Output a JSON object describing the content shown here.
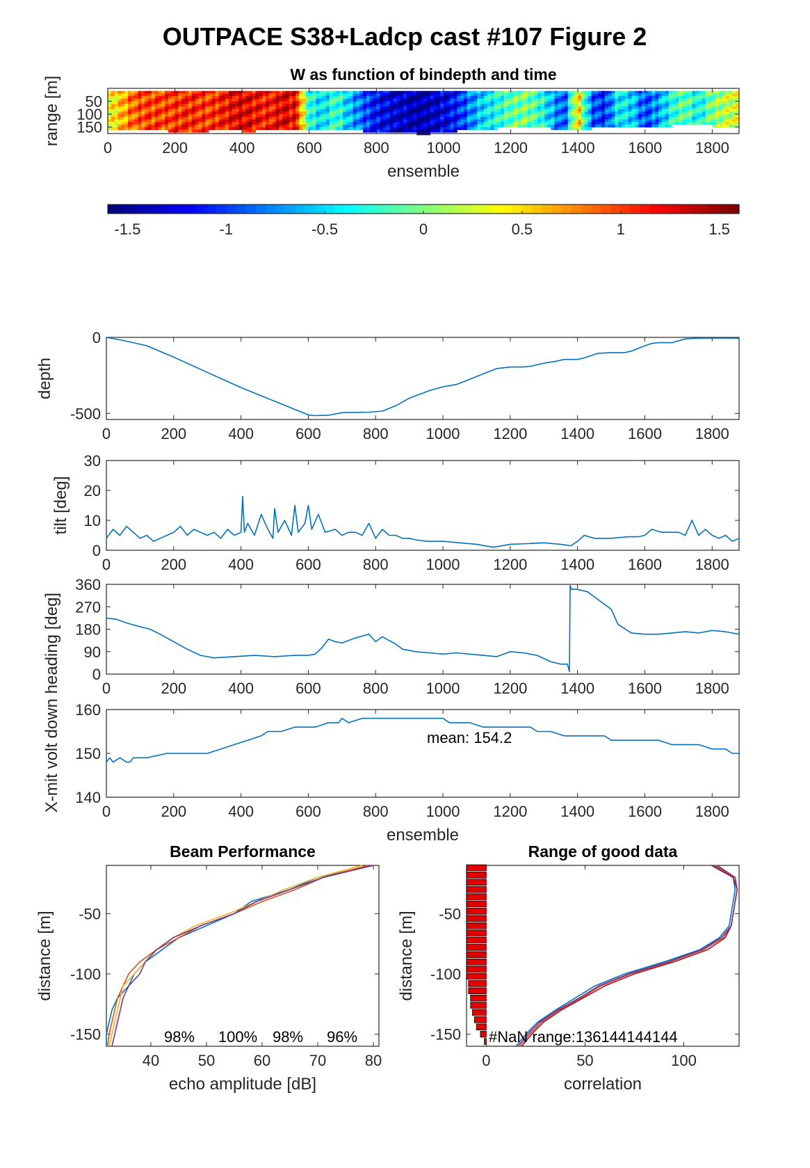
{
  "figure_title": "OUTPACE S38+Ladcp cast #107 Figure 2",
  "colors": {
    "line": "#0072BD",
    "bar_fill": "#e00000",
    "axis": "#262626",
    "beam_lines": [
      "#0072BD",
      "#D95319",
      "#EDB120",
      "#7E2F8E"
    ],
    "corr_lines": [
      "#0072BD",
      "#D95319",
      "#A2142F",
      "#7E2F8E"
    ]
  },
  "chart_data": [
    {
      "id": "w_section",
      "type": "heatmap",
      "title": "W as function of bindepth and time",
      "xlabel": "ensemble",
      "ylabel": "range [m]",
      "xlim": [
        0,
        1880
      ],
      "ylim": [
        175,
        0
      ],
      "xticks": [
        0,
        200,
        400,
        600,
        800,
        1000,
        1200,
        1400,
        1600,
        1800
      ],
      "yticks": [
        50,
        100,
        150
      ],
      "colormap": "jet",
      "clim": [
        -1.6,
        1.6
      ],
      "w_profile": {
        "x": [
          0,
          40,
          80,
          120,
          180,
          240,
          300,
          360,
          400,
          440,
          480,
          520,
          560,
          600,
          640,
          680,
          720,
          760,
          800,
          840,
          880,
          920,
          960,
          1000,
          1040,
          1080,
          1120,
          1160,
          1200,
          1240,
          1280,
          1320,
          1360,
          1400,
          1440,
          1480,
          1520,
          1560,
          1600,
          1640,
          1680,
          1720,
          1760,
          1800,
          1840,
          1880
        ],
        "w": [
          0.3,
          0.6,
          0.9,
          1.0,
          1.0,
          1.1,
          1.0,
          1.2,
          1.3,
          1.2,
          1.1,
          1.3,
          1.2,
          -0.3,
          -0.5,
          -0.2,
          -0.6,
          -0.9,
          -1.2,
          -1.3,
          -1.4,
          -1.5,
          -1.4,
          -1.3,
          -1.1,
          -0.8,
          -0.5,
          -0.3,
          -0.1,
          0.0,
          -0.2,
          -0.6,
          -1.0,
          0.6,
          -0.9,
          -1.1,
          -0.4,
          -0.5,
          -1.0,
          -0.7,
          -0.3,
          -0.1,
          -0.4,
          0.0,
          0.2,
          0.3
        ],
        "valid_range_m": [
          150,
          150,
          160,
          155,
          160,
          165,
          160,
          158,
          160,
          160,
          158,
          160,
          158,
          150,
          150,
          155,
          158,
          160,
          165,
          168,
          168,
          170,
          170,
          168,
          160,
          155,
          150,
          150,
          148,
          150,
          148,
          150,
          150,
          155,
          150,
          145,
          140,
          140,
          140,
          140,
          140,
          138,
          138,
          140,
          140,
          140
        ]
      }
    },
    {
      "id": "colorbar",
      "type": "colorbar",
      "ticks": [
        -1.5,
        -1,
        -0.5,
        0,
        0.5,
        1,
        1.5
      ],
      "tick_labels": [
        "-1.5",
        "-1",
        "-0.5",
        "0",
        "0.5",
        "1",
        "1.5"
      ],
      "clim": [
        -1.6,
        1.6
      ]
    },
    {
      "id": "depth",
      "type": "line",
      "ylabel": "depth",
      "xlim": [
        0,
        1880
      ],
      "ylim": [
        -540,
        0
      ],
      "xticks": [
        0,
        200,
        400,
        600,
        800,
        1000,
        1200,
        1400,
        1600,
        1800
      ],
      "yticks": [
        -500,
        0
      ],
      "x": [
        0,
        50,
        120,
        200,
        300,
        400,
        500,
        600,
        620,
        660,
        700,
        780,
        820,
        860,
        900,
        960,
        1000,
        1040,
        1080,
        1120,
        1160,
        1200,
        1240,
        1260,
        1300,
        1340,
        1360,
        1400,
        1420,
        1440,
        1460,
        1500,
        1540,
        1560,
        1600,
        1620,
        1640,
        1680,
        1720,
        1760,
        1800,
        1880
      ],
      "y": [
        0,
        -20,
        -55,
        -130,
        -230,
        -330,
        -420,
        -510,
        -515,
        -512,
        -495,
        -492,
        -485,
        -450,
        -400,
        -350,
        -325,
        -310,
        -275,
        -240,
        -205,
        -195,
        -195,
        -190,
        -170,
        -155,
        -145,
        -145,
        -135,
        -120,
        -105,
        -100,
        -100,
        -90,
        -55,
        -40,
        -35,
        -35,
        -10,
        -5,
        -5,
        -5
      ]
    },
    {
      "id": "tilt",
      "type": "line",
      "ylabel": "tilt [deg]",
      "xlim": [
        0,
        1880
      ],
      "ylim": [
        0,
        30
      ],
      "xticks": [
        0,
        200,
        400,
        600,
        800,
        1000,
        1200,
        1400,
        1600,
        1800
      ],
      "yticks": [
        0,
        10,
        20,
        30
      ],
      "x": [
        0,
        20,
        40,
        60,
        80,
        100,
        120,
        140,
        160,
        180,
        200,
        220,
        240,
        260,
        280,
        300,
        320,
        340,
        360,
        380,
        400,
        405,
        410,
        420,
        440,
        460,
        480,
        495,
        500,
        510,
        530,
        550,
        560,
        570,
        590,
        600,
        610,
        630,
        650,
        680,
        700,
        720,
        740,
        760,
        780,
        800,
        820,
        840,
        860,
        880,
        900,
        920,
        950,
        1000,
        1050,
        1100,
        1150,
        1200,
        1250,
        1300,
        1350,
        1380,
        1400,
        1420,
        1450,
        1500,
        1550,
        1580,
        1600,
        1620,
        1650,
        1700,
        1720,
        1740,
        1760,
        1780,
        1800,
        1820,
        1840,
        1860,
        1880
      ],
      "y": [
        4,
        7,
        5,
        8,
        6,
        4,
        5,
        3,
        4,
        5,
        6,
        8,
        5,
        7,
        6,
        5,
        6,
        4,
        7,
        5,
        6,
        18,
        6,
        9,
        5,
        12,
        7,
        4,
        14,
        6,
        10,
        5,
        15,
        6,
        9,
        15,
        7,
        12,
        6,
        7,
        5,
        6,
        6,
        5,
        9,
        4,
        7,
        5,
        5,
        4,
        4,
        3.5,
        3,
        3,
        2.5,
        2,
        1,
        2,
        2.2,
        2.5,
        2,
        1.5,
        3,
        5,
        4,
        4,
        4.5,
        4.5,
        5,
        7,
        6,
        6,
        5,
        10,
        5,
        7,
        5,
        4,
        5,
        3,
        4
      ]
    },
    {
      "id": "heading",
      "type": "line",
      "ylabel": "heading [deg]",
      "xlim": [
        0,
        1880
      ],
      "ylim": [
        0,
        360
      ],
      "xticks": [
        0,
        200,
        400,
        600,
        800,
        1000,
        1200,
        1400,
        1600,
        1800
      ],
      "yticks": [
        0,
        90,
        180,
        270,
        360
      ],
      "x": [
        0,
        30,
        60,
        100,
        130,
        160,
        200,
        240,
        280,
        320,
        380,
        440,
        500,
        560,
        600,
        620,
        640,
        660,
        680,
        700,
        740,
        780,
        800,
        820,
        860,
        880,
        920,
        960,
        1000,
        1040,
        1080,
        1120,
        1160,
        1200,
        1240,
        1280,
        1320,
        1350,
        1370,
        1376,
        1378,
        1382,
        1400,
        1430,
        1460,
        1500,
        1520,
        1560,
        1600,
        1640,
        1680,
        1720,
        1760,
        1800,
        1840,
        1860,
        1880
      ],
      "y": [
        225,
        220,
        205,
        190,
        180,
        160,
        130,
        100,
        75,
        65,
        70,
        75,
        70,
        75,
        75,
        80,
        105,
        140,
        130,
        125,
        145,
        160,
        130,
        150,
        120,
        100,
        90,
        85,
        80,
        85,
        80,
        75,
        70,
        90,
        85,
        75,
        50,
        40,
        40,
        10,
        355,
        340,
        340,
        330,
        300,
        260,
        200,
        165,
        160,
        160,
        165,
        170,
        165,
        175,
        170,
        165,
        160
      ]
    },
    {
      "id": "xmit_volt",
      "type": "line",
      "ylabel": "X-mit volt down",
      "xlabel": "ensemble",
      "xlim": [
        0,
        1880
      ],
      "ylim": [
        140,
        160
      ],
      "xticks": [
        0,
        200,
        400,
        600,
        800,
        1000,
        1200,
        1400,
        1600,
        1800
      ],
      "yticks": [
        140,
        150,
        160
      ],
      "annotation": "mean: 154.2",
      "x": [
        0,
        10,
        20,
        40,
        60,
        70,
        80,
        100,
        120,
        180,
        240,
        300,
        340,
        380,
        420,
        460,
        480,
        520,
        560,
        580,
        620,
        660,
        690,
        700,
        720,
        760,
        800,
        840,
        900,
        1000,
        1020,
        1080,
        1120,
        1200,
        1260,
        1280,
        1320,
        1360,
        1400,
        1440,
        1480,
        1500,
        1540,
        1560,
        1600,
        1640,
        1680,
        1720,
        1760,
        1800,
        1840,
        1860,
        1880
      ],
      "y": [
        148,
        149,
        148,
        149,
        148,
        148,
        149,
        149,
        149,
        150,
        150,
        150,
        151,
        152,
        153,
        154,
        155,
        155,
        156,
        156,
        156,
        157,
        157,
        158,
        157,
        158,
        158,
        158,
        158,
        158,
        157,
        157,
        156,
        156,
        156,
        155,
        155,
        154,
        154,
        154,
        154,
        153,
        153,
        153,
        153,
        153,
        152,
        152,
        152,
        151,
        151,
        150,
        150
      ]
    },
    {
      "id": "beam_performance",
      "type": "line",
      "title": "Beam Performance",
      "xlabel": "echo amplitude [dB]",
      "ylabel": "distance [m]",
      "xlim": [
        32,
        81
      ],
      "ylim": [
        -160,
        -10
      ],
      "xticks": [
        40,
        50,
        60,
        70,
        80
      ],
      "yticks": [
        -150,
        -100,
        -50
      ],
      "beam_labels": [
        "98%",
        "100%",
        "98%",
        "96%"
      ],
      "series": [
        {
          "y": [
            -10,
            -20,
            -30,
            -40,
            -50,
            -60,
            -70,
            -80,
            -90,
            -100,
            -110,
            -120,
            -130,
            -140,
            -150,
            -160
          ],
          "x": [
            80,
            70,
            65,
            58,
            55,
            50,
            45,
            42,
            39,
            37,
            36,
            34,
            33,
            32.5,
            32,
            32
          ]
        },
        {
          "y": [
            -10,
            -20,
            -30,
            -40,
            -50,
            -60,
            -70,
            -80,
            -90,
            -100,
            -110,
            -120,
            -130,
            -140,
            -150,
            -160
          ],
          "x": [
            79,
            71,
            66,
            60,
            55,
            49,
            45,
            41,
            38,
            36,
            35,
            34,
            33.5,
            33,
            32.5,
            32.2
          ]
        },
        {
          "y": [
            -10,
            -20,
            -30,
            -40,
            -50,
            -60,
            -70,
            -80,
            -90,
            -100,
            -110,
            -120,
            -130,
            -140,
            -150,
            -160
          ],
          "x": [
            78,
            70,
            64,
            59,
            54,
            48,
            44,
            41,
            39,
            37,
            35,
            34.5,
            34,
            33.5,
            33,
            32.5
          ]
        },
        {
          "y": [
            -10,
            -20,
            -30,
            -40,
            -50,
            -60,
            -70,
            -80,
            -90,
            -100,
            -110,
            -120,
            -130,
            -140,
            -150,
            -160
          ],
          "x": [
            80,
            71,
            65,
            59,
            55,
            49,
            44,
            41,
            39,
            38,
            36,
            35,
            34.5,
            34,
            33.5,
            33
          ]
        }
      ]
    },
    {
      "id": "range_good_data",
      "type": "line",
      "title": "Range of good data",
      "xlabel": "correlation",
      "ylabel": "distance [m]",
      "xlim": [
        -10,
        128
      ],
      "ylim": [
        -160,
        -10
      ],
      "xticks": [
        0,
        50,
        100
      ],
      "yticks": [
        -150,
        -100,
        -50
      ],
      "annotation": "#NaN range:136144144144",
      "bars": {
        "y": [
          -12,
          -18,
          -24,
          -30,
          -36,
          -42,
          -48,
          -54,
          -60,
          -66,
          -72,
          -78,
          -84,
          -90,
          -96,
          -102,
          -108,
          -114,
          -120,
          -126,
          -132,
          -138,
          -144,
          -150,
          -156
        ],
        "len": [
          10,
          10,
          10,
          10,
          10,
          10,
          10,
          10,
          10,
          10,
          10,
          10,
          10,
          10,
          10,
          10,
          9,
          9,
          8,
          8,
          7,
          6,
          5,
          3,
          1
        ]
      },
      "series": [
        {
          "y": [
            -10,
            -20,
            -30,
            -40,
            -50,
            -60,
            -70,
            -80,
            -90,
            -100,
            -110,
            -120,
            -130,
            -140,
            -150,
            -160
          ],
          "x": [
            115,
            125,
            126,
            125,
            124,
            123,
            118,
            108,
            90,
            70,
            55,
            45,
            35,
            26,
            20,
            15
          ]
        },
        {
          "y": [
            -10,
            -20,
            -30,
            -40,
            -50,
            -60,
            -70,
            -80,
            -90,
            -100,
            -110,
            -120,
            -130,
            -140,
            -150,
            -160
          ],
          "x": [
            116,
            126,
            127,
            126,
            125,
            124,
            120,
            110,
            93,
            73,
            58,
            48,
            37,
            28,
            22,
            17
          ]
        },
        {
          "y": [
            -10,
            -20,
            -30,
            -40,
            -50,
            -60,
            -70,
            -80,
            -90,
            -100,
            -110,
            -120,
            -130,
            -140,
            -150,
            -160
          ],
          "x": [
            114,
            125,
            127,
            126,
            125,
            124,
            121,
            112,
            95,
            75,
            60,
            49,
            38,
            29,
            23,
            18
          ]
        },
        {
          "y": [
            -10,
            -20,
            -30,
            -40,
            -50,
            -60,
            -70,
            -80,
            -90,
            -100,
            -110,
            -120,
            -130,
            -140,
            -150,
            -160
          ],
          "x": [
            117,
            126,
            127,
            126,
            125,
            124,
            119,
            109,
            92,
            72,
            57,
            47,
            36,
            27,
            21,
            16
          ]
        }
      ]
    }
  ]
}
